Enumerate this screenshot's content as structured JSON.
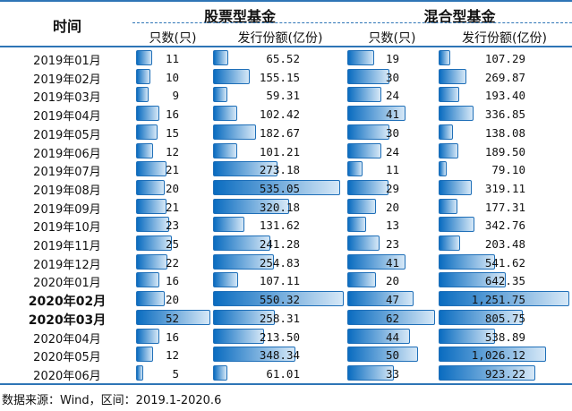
{
  "header": {
    "time": "时间",
    "group_stock": "股票型基金",
    "group_mixed": "混合型基金",
    "count_label": "只数(只)",
    "share_label": "发行份额(亿份)"
  },
  "rows": [
    {
      "date": "2019年01月",
      "stock_count": "11",
      "stock_share": "65.52",
      "mixed_count": "19",
      "mixed_share": "107.29",
      "bold": false
    },
    {
      "date": "2019年02月",
      "stock_count": "10",
      "stock_share": "155.15",
      "mixed_count": "30",
      "mixed_share": "269.87",
      "bold": false
    },
    {
      "date": "2019年03月",
      "stock_count": "9",
      "stock_share": "59.31",
      "mixed_count": "24",
      "mixed_share": "193.40",
      "bold": false
    },
    {
      "date": "2019年04月",
      "stock_count": "16",
      "stock_share": "102.42",
      "mixed_count": "41",
      "mixed_share": "336.85",
      "bold": false
    },
    {
      "date": "2019年05月",
      "stock_count": "15",
      "stock_share": "182.67",
      "mixed_count": "30",
      "mixed_share": "138.08",
      "bold": false
    },
    {
      "date": "2019年06月",
      "stock_count": "12",
      "stock_share": "101.21",
      "mixed_count": "24",
      "mixed_share": "189.50",
      "bold": false
    },
    {
      "date": "2019年07月",
      "stock_count": "21",
      "stock_share": "273.18",
      "mixed_count": "11",
      "mixed_share": "79.10",
      "bold": false
    },
    {
      "date": "2019年08月",
      "stock_count": "20",
      "stock_share": "535.05",
      "mixed_count": "29",
      "mixed_share": "319.11",
      "bold": false
    },
    {
      "date": "2019年09月",
      "stock_count": "21",
      "stock_share": "320.18",
      "mixed_count": "20",
      "mixed_share": "177.31",
      "bold": false
    },
    {
      "date": "2019年10月",
      "stock_count": "23",
      "stock_share": "131.62",
      "mixed_count": "13",
      "mixed_share": "342.76",
      "bold": false
    },
    {
      "date": "2019年11月",
      "stock_count": "25",
      "stock_share": "241.28",
      "mixed_count": "23",
      "mixed_share": "203.48",
      "bold": false
    },
    {
      "date": "2019年12月",
      "stock_count": "22",
      "stock_share": "254.83",
      "mixed_count": "41",
      "mixed_share": "541.62",
      "bold": false
    },
    {
      "date": "2020年01月",
      "stock_count": "16",
      "stock_share": "107.11",
      "mixed_count": "20",
      "mixed_share": "642.35",
      "bold": false
    },
    {
      "date": "2020年02月",
      "stock_count": "20",
      "stock_share": "550.32",
      "mixed_count": "47",
      "mixed_share": "1,251.75",
      "bold": true
    },
    {
      "date": "2020年03月",
      "stock_count": "52",
      "stock_share": "258.31",
      "mixed_count": "62",
      "mixed_share": "805.75",
      "bold": true
    },
    {
      "date": "2020年04月",
      "stock_count": "16",
      "stock_share": "213.50",
      "mixed_count": "44",
      "mixed_share": "538.89",
      "bold": false
    },
    {
      "date": "2020年05月",
      "stock_count": "12",
      "stock_share": "348.34",
      "mixed_count": "50",
      "mixed_share": "1,026.12",
      "bold": false
    },
    {
      "date": "2020年06月",
      "stock_count": "5",
      "stock_share": "61.01",
      "mixed_count": "33",
      "mixed_share": "923.22",
      "bold": false
    }
  ],
  "colors": {
    "bar_start": "#0a6cc0",
    "bar_end": "#d6e8f7",
    "rule": "#2e75b6"
  },
  "footer": "数据来源：Wind，区间：2019.1-2020.6"
}
